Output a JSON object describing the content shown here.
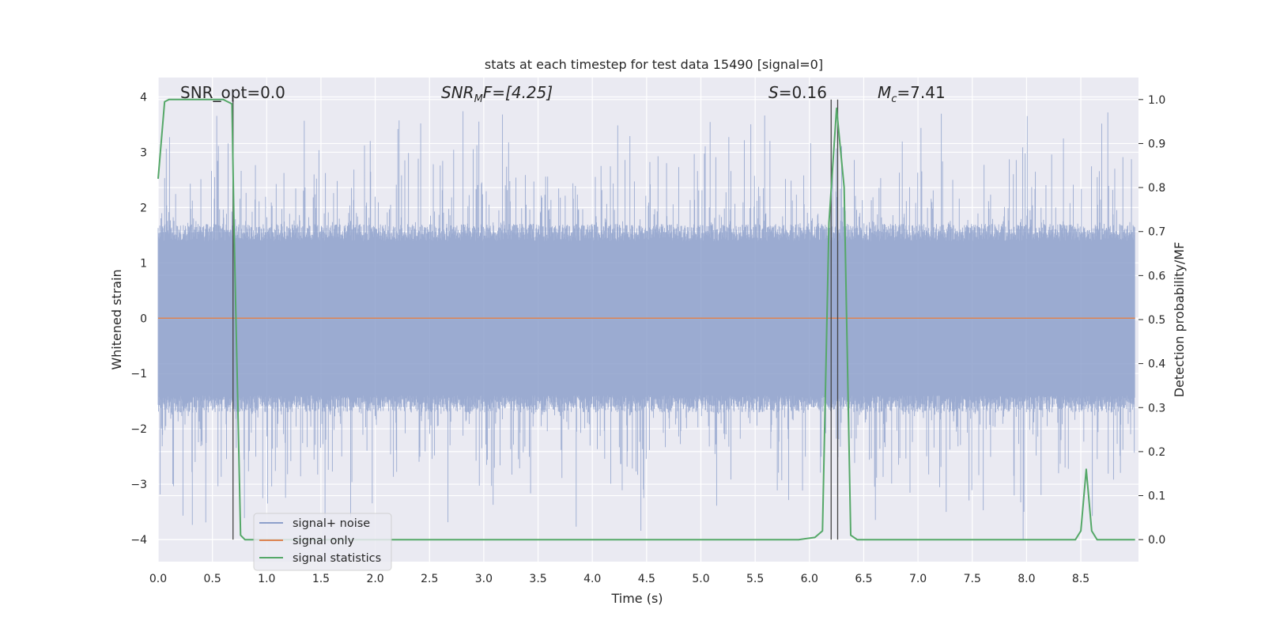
{
  "chart_data": {
    "type": "line",
    "title": "stats at each timestep for test data 15490 [signal=0]",
    "xlabel": "Time (s)",
    "ylabel": "Whitened strain",
    "ylabel_right": "Detection probability/MF",
    "xlim": [
      0.0,
      9.0
    ],
    "ylim_left": [
      -4.4,
      4.35
    ],
    "ylim_right": [
      -0.05,
      1.05
    ],
    "x_ticks": [
      0.0,
      0.5,
      1.0,
      1.5,
      2.0,
      2.5,
      3.0,
      3.5,
      4.0,
      4.5,
      5.0,
      5.5,
      6.0,
      6.5,
      7.0,
      7.5,
      8.0,
      8.5
    ],
    "x_tick_labels": [
      "0.0",
      "0.5",
      "1.0",
      "1.5",
      "2.0",
      "2.5",
      "3.0",
      "3.5",
      "4.0",
      "4.5",
      "5.0",
      "5.5",
      "6.0",
      "6.5",
      "7.0",
      "7.5",
      "8.0",
      "8.5"
    ],
    "y_left_ticks": [
      -4,
      -3,
      -2,
      -1,
      0,
      1,
      2,
      3,
      4
    ],
    "y_left_tick_labels": [
      "−4",
      "−3",
      "−2",
      "−1",
      "0",
      "1",
      "2",
      "3",
      "4"
    ],
    "y_right_ticks": [
      0.0,
      0.1,
      0.2,
      0.3,
      0.4,
      0.5,
      0.6,
      0.7,
      0.8,
      0.9,
      1.0
    ],
    "y_right_tick_labels": [
      "0.0",
      "0.1",
      "0.2",
      "0.3",
      "0.4",
      "0.5",
      "0.6",
      "0.7",
      "0.8",
      "0.9",
      "1.0"
    ],
    "grid": true,
    "legend_position": "lower-left",
    "annotations": {
      "snr_opt": "SNR_opt=0.0",
      "snr_mf_base": "SNR",
      "snr_mf_sub": "M",
      "snr_mf_rest": "F=[4.25]",
      "s_base": "S",
      "s_rest": "=0.16",
      "mc_base": "M",
      "mc_sub": "c",
      "mc_rest": "=7.41"
    },
    "series": [
      {
        "name": "signal+ noise",
        "color": "#8da0cb",
        "style": "dense-noise",
        "duration": 9.0,
        "envelope": {
          "typical_abs": 1.55,
          "max": 3.95,
          "min": -4.0
        }
      },
      {
        "name": "signal only",
        "color": "#dd8452",
        "x": [
          0.0,
          9.0
        ],
        "y": [
          0.0,
          0.0
        ]
      },
      {
        "name": "signal statistics",
        "color": "#55a868",
        "axis": "right",
        "x": [
          0.0,
          0.06,
          0.1,
          0.3,
          0.6,
          0.68,
          0.7,
          0.76,
          0.8,
          0.85,
          1.0,
          2.0,
          3.0,
          4.0,
          5.0,
          5.9,
          6.05,
          6.12,
          6.18,
          6.25,
          6.32,
          6.38,
          6.44,
          6.6,
          7.0,
          8.0,
          8.45,
          8.5,
          8.55,
          8.6,
          8.65,
          8.75,
          9.0
        ],
        "y": [
          0.82,
          0.995,
          1.0,
          1.0,
          1.0,
          0.99,
          0.7,
          0.01,
          0.0,
          0.0,
          0.0,
          0.0,
          0.0,
          0.0,
          0.0,
          0.0,
          0.005,
          0.02,
          0.72,
          0.98,
          0.8,
          0.01,
          0.0,
          0.0,
          0.0,
          0.0,
          0.0,
          0.02,
          0.16,
          0.02,
          0.0,
          0.0,
          0.0
        ]
      }
    ],
    "vertical_markers": [
      {
        "x": 0.69,
        "color": "#444444"
      },
      {
        "x": 6.2,
        "color": "#444444"
      },
      {
        "x": 6.26,
        "color": "#444444"
      }
    ]
  }
}
